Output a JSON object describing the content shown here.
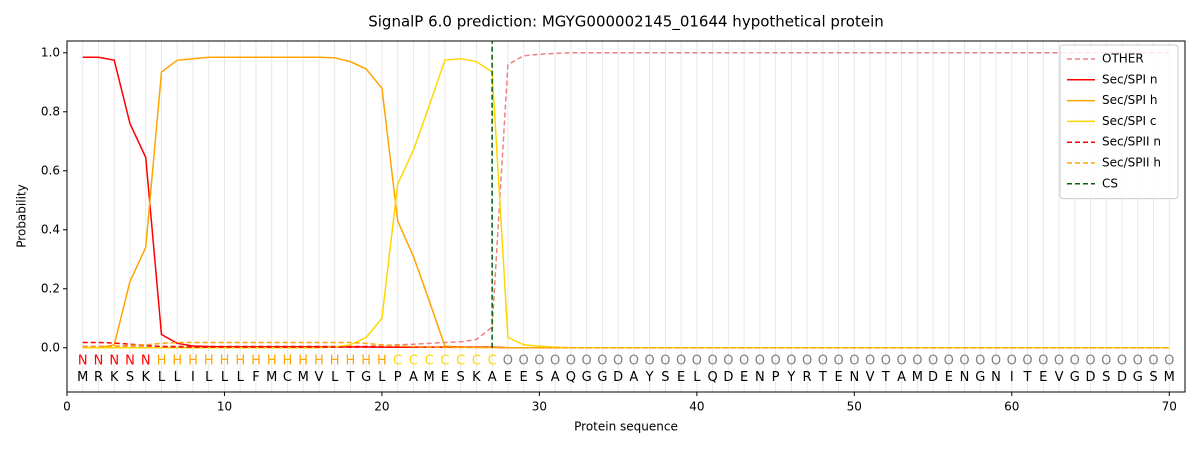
{
  "chart_data": {
    "type": "line",
    "title": "SignalP 6.0 prediction: MGYG000002145_01644 hypothetical protein",
    "x_label": "Protein sequence",
    "y_label": "Probability",
    "xlim": [
      0,
      71
    ],
    "ylim": [
      -0.15,
      1.04
    ],
    "xticks": [
      0,
      10,
      20,
      30,
      40,
      50,
      60,
      70
    ],
    "yticks": [
      {
        "value": 0,
        "label": "0.0"
      },
      {
        "value": 0.2,
        "label": "0.2"
      },
      {
        "value": 0.4,
        "label": "0.4"
      },
      {
        "value": 0.6,
        "label": "0.6"
      },
      {
        "value": 0.8,
        "label": "0.8"
      },
      {
        "value": 1,
        "label": "1.0"
      }
    ],
    "grid": true,
    "legend": "upper right",
    "x": [
      1,
      2,
      3,
      4,
      5,
      6,
      7,
      8,
      9,
      10,
      11,
      12,
      13,
      14,
      15,
      16,
      17,
      18,
      19,
      20,
      21,
      22,
      23,
      24,
      25,
      26,
      27,
      28,
      29,
      30,
      31,
      32,
      33,
      34,
      35,
      36,
      37,
      38,
      39,
      40,
      41,
      42,
      43,
      44,
      45,
      46,
      47,
      48,
      49,
      50,
      51,
      52,
      53,
      54,
      55,
      56,
      57,
      58,
      59,
      60,
      61,
      62,
      63,
      64,
      65,
      66,
      67,
      68,
      69,
      70
    ],
    "residues": [
      "M",
      "R",
      "K",
      "S",
      "K",
      "L",
      "L",
      "I",
      "L",
      "L",
      "L",
      "F",
      "M",
      "C",
      "M",
      "V",
      "L",
      "T",
      "G",
      "L",
      "P",
      "A",
      "M",
      "E",
      "S",
      "K",
      "A",
      "E",
      "E",
      "S",
      "A",
      "Q",
      "G",
      "G",
      "D",
      "A",
      "Y",
      "S",
      "E",
      "L",
      "Q",
      "D",
      "E",
      "N",
      "P",
      "Y",
      "R",
      "T",
      "E",
      "N",
      "V",
      "T",
      "A",
      "M",
      "D",
      "E",
      "N",
      "G",
      "N",
      "I",
      "T",
      "E",
      "V",
      "G",
      "D",
      "S",
      "D",
      "G",
      "S",
      "M"
    ],
    "region_labels": [
      "N",
      "N",
      "N",
      "N",
      "N",
      "H",
      "H",
      "H",
      "H",
      "H",
      "H",
      "H",
      "H",
      "H",
      "H",
      "H",
      "H",
      "H",
      "H",
      "H",
      "C",
      "C",
      "C",
      "C",
      "C",
      "C",
      "C",
      "O",
      "O",
      "O",
      "O",
      "O",
      "O",
      "O",
      "O",
      "O",
      "O",
      "O",
      "O",
      "O",
      "O",
      "O",
      "O",
      "O",
      "O",
      "O",
      "O",
      "O",
      "O",
      "O",
      "O",
      "O",
      "O",
      "O",
      "O",
      "O",
      "O",
      "O",
      "O",
      "O",
      "O",
      "O",
      "O",
      "O",
      "O",
      "O",
      "O",
      "O",
      "O",
      "O"
    ],
    "region_label_colors": {
      "N": "#ff0000",
      "H": "#ffa500",
      "C": "#ffd700",
      "O": "#808080"
    },
    "series": [
      {
        "name": "OTHER",
        "color": "#f08080",
        "dash": true,
        "values": [
          0.005,
          0.005,
          0.005,
          0.005,
          0.005,
          0.005,
          0.005,
          0.005,
          0.005,
          0.005,
          0.005,
          0.005,
          0.005,
          0.005,
          0.005,
          0.005,
          0.005,
          0.005,
          0.005,
          0.008,
          0.01,
          0.012,
          0.015,
          0.018,
          0.02,
          0.028,
          0.07,
          0.96,
          0.99,
          0.995,
          0.998,
          1,
          1,
          1,
          1,
          1,
          1,
          1,
          1,
          1,
          1,
          1,
          1,
          1,
          1,
          1,
          1,
          1,
          1,
          1,
          1,
          1,
          1,
          1,
          1,
          1,
          1,
          1,
          1,
          1,
          1,
          1,
          1,
          1,
          1,
          1,
          1,
          1,
          1,
          1
        ]
      },
      {
        "name": "Sec/SPI n",
        "color": "#ff0000",
        "dash": false,
        "values": [
          0.985,
          0.985,
          0.975,
          0.76,
          0.645,
          0.045,
          0.015,
          0.006,
          0.004,
          0.003,
          0.003,
          0.003,
          0.003,
          0.003,
          0.003,
          0.003,
          0.003,
          0.003,
          0.003,
          0.002,
          0.002,
          0.002,
          0.002,
          0.002,
          0.002,
          0.002,
          0.002,
          0,
          0,
          0,
          0,
          0,
          0,
          0,
          0,
          0,
          0,
          0,
          0,
          0,
          0,
          0,
          0,
          0,
          0,
          0,
          0,
          0,
          0,
          0,
          0,
          0,
          0,
          0,
          0,
          0,
          0,
          0,
          0,
          0,
          0,
          0,
          0,
          0,
          0,
          0,
          0,
          0,
          0,
          0
        ]
      },
      {
        "name": "Sec/SPI h",
        "color": "#ffa500",
        "dash": false,
        "values": [
          0,
          0,
          0.01,
          0.225,
          0.34,
          0.935,
          0.975,
          0.98,
          0.985,
          0.985,
          0.985,
          0.985,
          0.985,
          0.985,
          0.985,
          0.985,
          0.983,
          0.97,
          0.945,
          0.88,
          0.43,
          0.31,
          0.16,
          0.005,
          0.002,
          0.001,
          0.001,
          0,
          0,
          0,
          0,
          0,
          0,
          0,
          0,
          0,
          0,
          0,
          0,
          0,
          0,
          0,
          0,
          0,
          0,
          0,
          0,
          0,
          0,
          0,
          0,
          0,
          0,
          0,
          0,
          0,
          0,
          0,
          0,
          0,
          0,
          0,
          0,
          0,
          0,
          0,
          0,
          0,
          0,
          0
        ]
      },
      {
        "name": "Sec/SPI c",
        "color": "#ffd700",
        "dash": false,
        "values": [
          0,
          0,
          0,
          0,
          0,
          0,
          0,
          0,
          0,
          0,
          0,
          0,
          0,
          0,
          0,
          0,
          0.003,
          0.01,
          0.035,
          0.1,
          0.555,
          0.67,
          0.82,
          0.975,
          0.98,
          0.97,
          0.935,
          0.035,
          0.01,
          0.005,
          0.002,
          0,
          0,
          0,
          0,
          0,
          0,
          0,
          0,
          0,
          0,
          0,
          0,
          0,
          0,
          0,
          0,
          0,
          0,
          0,
          0,
          0,
          0,
          0,
          0,
          0,
          0,
          0,
          0,
          0,
          0,
          0,
          0,
          0,
          0,
          0,
          0,
          0,
          0,
          0
        ]
      },
      {
        "name": "Sec/SPII n",
        "color": "#ff0000",
        "dash": true,
        "values": [
          0.018,
          0.018,
          0.016,
          0.012,
          0.008,
          0.004,
          0.003,
          0.002,
          0.002,
          0.002,
          0.002,
          0.002,
          0.002,
          0.002,
          0.002,
          0.002,
          0.002,
          0.002,
          0.002,
          0.002,
          0.002,
          0.002,
          0.002,
          0.002,
          0.002,
          0.002,
          0.002,
          0,
          0,
          0,
          0,
          0,
          0,
          0,
          0,
          0,
          0,
          0,
          0,
          0,
          0,
          0,
          0,
          0,
          0,
          0,
          0,
          0,
          0,
          0,
          0,
          0,
          0,
          0,
          0,
          0,
          0,
          0,
          0,
          0,
          0,
          0,
          0,
          0,
          0,
          0,
          0,
          0,
          0,
          0
        ]
      },
      {
        "name": "Sec/SPII h",
        "color": "#ffa500",
        "dash": true,
        "values": [
          0.003,
          0.003,
          0.005,
          0.008,
          0.01,
          0.015,
          0.018,
          0.018,
          0.018,
          0.018,
          0.018,
          0.018,
          0.018,
          0.018,
          0.018,
          0.018,
          0.018,
          0.018,
          0.015,
          0.01,
          0.007,
          0.004,
          0.002,
          0.001,
          0.001,
          0.001,
          0.001,
          0,
          0,
          0,
          0,
          0,
          0,
          0,
          0,
          0,
          0,
          0,
          0,
          0,
          0,
          0,
          0,
          0,
          0,
          0,
          0,
          0,
          0,
          0,
          0,
          0,
          0,
          0,
          0,
          0,
          0,
          0,
          0,
          0,
          0,
          0,
          0,
          0,
          0,
          0,
          0,
          0,
          0,
          0
        ]
      }
    ],
    "cs": {
      "name": "CS",
      "color": "#006400",
      "position": 27
    }
  }
}
